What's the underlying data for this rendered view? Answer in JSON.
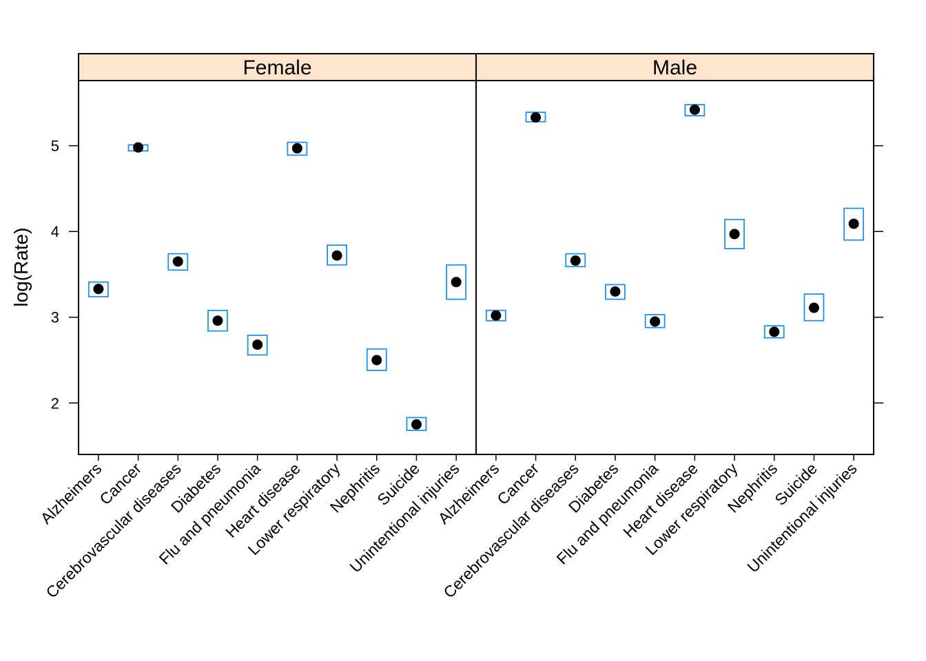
{
  "chart_data": {
    "type": "scatter",
    "ylabel": "log(Rate)",
    "ylim": [
      1.4,
      5.76
    ],
    "yticks": [
      2,
      3,
      4,
      5
    ],
    "ytick_labels": [
      "2",
      "3",
      "4",
      "5"
    ],
    "categories": [
      "Alzheimers",
      "Cancer",
      "Cerebrovascular diseases",
      "Diabetes",
      "Flu and pneumonia",
      "Heart disease",
      "Lower respiratory",
      "Nephritis",
      "Suicide",
      "Unintentional injuries"
    ],
    "panels": [
      {
        "strip": "Female",
        "values": [
          3.33,
          4.98,
          3.65,
          2.96,
          2.68,
          4.97,
          3.72,
          2.5,
          1.75,
          3.41
        ],
        "interval_low": [
          3.24,
          4.94,
          3.55,
          2.84,
          2.56,
          4.89,
          3.61,
          2.38,
          1.68,
          3.21
        ],
        "interval_high": [
          3.41,
          5.01,
          3.74,
          3.08,
          2.79,
          5.04,
          3.84,
          2.63,
          1.83,
          3.61
        ]
      },
      {
        "strip": "Male",
        "values": [
          3.02,
          5.33,
          3.66,
          3.3,
          2.95,
          5.42,
          3.97,
          2.83,
          3.11,
          4.09
        ],
        "interval_low": [
          2.96,
          5.28,
          3.59,
          3.21,
          2.88,
          5.35,
          3.8,
          2.76,
          2.96,
          3.9
        ],
        "interval_high": [
          3.08,
          5.39,
          3.74,
          3.38,
          3.03,
          5.48,
          4.14,
          2.9,
          3.27,
          4.27
        ]
      }
    ],
    "colors": {
      "point": "#000000",
      "interval": "#1f8ff0",
      "strip": "#ffe5cc",
      "frame": "#000000"
    },
    "grid": false,
    "legend": "none"
  }
}
